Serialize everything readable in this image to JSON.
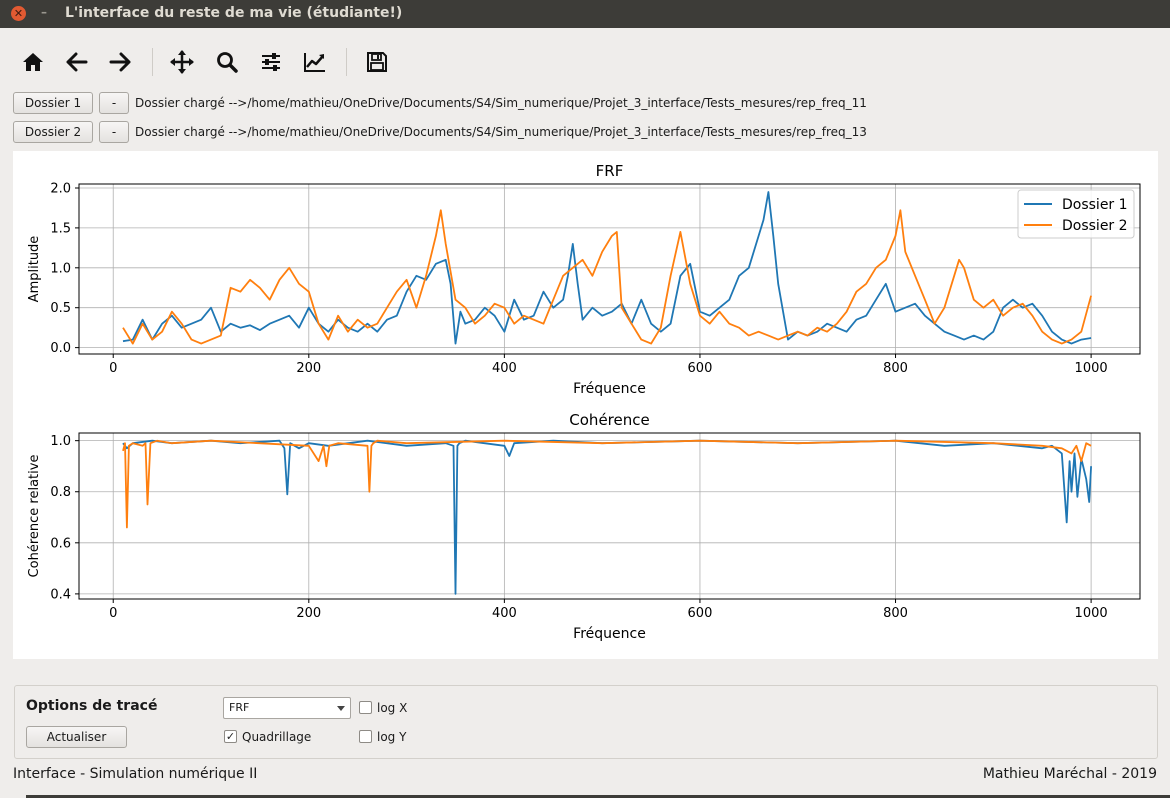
{
  "window": {
    "title": "L'interface du reste de ma vie (étudiante!)",
    "close_glyph": "✕",
    "minimize_glyph": "–"
  },
  "toolbar": {
    "icons": [
      "home-icon",
      "back-arrow-icon",
      "forward-arrow-icon",
      "pan-move-icon",
      "zoom-icon",
      "subplots-config-icon",
      "edit-axes-icon",
      "save-icon"
    ]
  },
  "folders": [
    {
      "button": "Dossier 1",
      "remove": "-",
      "path": "Dossier chargé -->/home/mathieu/OneDrive/Documents/S4/Sim_numerique/Projet_3_interface/Tests_mesures/rep_freq_11"
    },
    {
      "button": "Dossier 2",
      "remove": "-",
      "path": "Dossier chargé -->/home/mathieu/OneDrive/Documents/S4/Sim_numerique/Projet_3_interface/Tests_mesures/rep_freq_13"
    }
  ],
  "chart_data": [
    {
      "type": "line",
      "title": "FRF",
      "xlabel": "Fréquence",
      "ylabel": "Amplitude",
      "xlim": [
        -35,
        1050
      ],
      "ylim": [
        -0.08,
        2.05
      ],
      "xticks": [
        0,
        200,
        400,
        600,
        800,
        1000
      ],
      "yticks": [
        0.0,
        0.5,
        1.0,
        1.5,
        2.0
      ],
      "ytick_labels": [
        "0.0",
        "0.5",
        "1.0",
        "1.5",
        "2.0"
      ],
      "grid": true,
      "legend": "top-right",
      "series": [
        {
          "name": "Dossier 1",
          "color": "#1f77b4",
          "x": [
            10,
            20,
            30,
            40,
            50,
            60,
            70,
            80,
            90,
            100,
            110,
            120,
            130,
            140,
            150,
            160,
            170,
            180,
            190,
            200,
            210,
            220,
            230,
            240,
            250,
            260,
            270,
            280,
            290,
            300,
            310,
            320,
            330,
            340,
            345,
            350,
            355,
            360,
            370,
            380,
            390,
            400,
            410,
            420,
            430,
            440,
            450,
            460,
            465,
            470,
            475,
            480,
            490,
            500,
            510,
            520,
            530,
            540,
            550,
            560,
            570,
            580,
            590,
            600,
            610,
            620,
            630,
            640,
            650,
            660,
            665,
            670,
            675,
            680,
            690,
            700,
            710,
            720,
            730,
            740,
            750,
            760,
            770,
            780,
            790,
            800,
            810,
            820,
            830,
            840,
            850,
            860,
            870,
            880,
            890,
            900,
            910,
            920,
            930,
            940,
            950,
            960,
            970,
            980,
            990,
            1000
          ],
          "y": [
            0.08,
            0.1,
            0.35,
            0.1,
            0.3,
            0.4,
            0.25,
            0.3,
            0.35,
            0.5,
            0.2,
            0.3,
            0.25,
            0.28,
            0.22,
            0.3,
            0.35,
            0.4,
            0.25,
            0.5,
            0.3,
            0.2,
            0.35,
            0.25,
            0.2,
            0.3,
            0.2,
            0.35,
            0.4,
            0.7,
            0.9,
            0.85,
            1.05,
            1.1,
            0.8,
            0.05,
            0.45,
            0.3,
            0.35,
            0.5,
            0.4,
            0.2,
            0.6,
            0.35,
            0.4,
            0.7,
            0.5,
            0.6,
            0.9,
            1.3,
            0.8,
            0.35,
            0.5,
            0.4,
            0.45,
            0.55,
            0.3,
            0.6,
            0.3,
            0.2,
            0.3,
            0.9,
            1.05,
            0.45,
            0.4,
            0.5,
            0.6,
            0.9,
            1.0,
            1.4,
            1.6,
            1.95,
            1.4,
            0.8,
            0.1,
            0.2,
            0.15,
            0.2,
            0.3,
            0.25,
            0.2,
            0.35,
            0.4,
            0.6,
            0.8,
            0.45,
            0.5,
            0.55,
            0.4,
            0.3,
            0.2,
            0.15,
            0.1,
            0.15,
            0.1,
            0.2,
            0.5,
            0.6,
            0.5,
            0.55,
            0.4,
            0.2,
            0.1,
            0.05,
            0.1,
            0.12
          ]
        },
        {
          "name": "Dossier 2",
          "color": "#ff7f0e",
          "x": [
            10,
            20,
            30,
            40,
            50,
            60,
            70,
            80,
            90,
            100,
            110,
            120,
            130,
            140,
            150,
            160,
            170,
            180,
            190,
            200,
            210,
            220,
            230,
            240,
            250,
            260,
            270,
            280,
            290,
            300,
            310,
            320,
            330,
            335,
            340,
            350,
            360,
            370,
            380,
            390,
            400,
            410,
            420,
            430,
            440,
            450,
            460,
            470,
            480,
            490,
            500,
            510,
            515,
            520,
            530,
            540,
            550,
            560,
            570,
            580,
            590,
            600,
            610,
            620,
            630,
            640,
            650,
            660,
            670,
            680,
            690,
            700,
            710,
            720,
            730,
            740,
            750,
            760,
            770,
            780,
            790,
            800,
            805,
            810,
            820,
            830,
            840,
            850,
            860,
            865,
            870,
            880,
            890,
            900,
            910,
            920,
            930,
            940,
            950,
            960,
            970,
            980,
            990,
            1000
          ],
          "y": [
            0.25,
            0.05,
            0.3,
            0.1,
            0.2,
            0.45,
            0.3,
            0.1,
            0.05,
            0.1,
            0.15,
            0.75,
            0.7,
            0.85,
            0.75,
            0.6,
            0.85,
            1.0,
            0.8,
            0.7,
            0.3,
            0.1,
            0.4,
            0.2,
            0.35,
            0.25,
            0.3,
            0.5,
            0.7,
            0.85,
            0.5,
            0.9,
            1.4,
            1.72,
            1.3,
            0.6,
            0.5,
            0.3,
            0.4,
            0.55,
            0.5,
            0.3,
            0.4,
            0.35,
            0.3,
            0.6,
            0.9,
            1.0,
            1.1,
            0.9,
            1.2,
            1.4,
            1.45,
            0.5,
            0.3,
            0.1,
            0.05,
            0.25,
            0.9,
            1.45,
            0.8,
            0.4,
            0.3,
            0.45,
            0.3,
            0.25,
            0.15,
            0.2,
            0.15,
            0.1,
            0.15,
            0.2,
            0.15,
            0.25,
            0.2,
            0.3,
            0.45,
            0.7,
            0.8,
            1.0,
            1.1,
            1.4,
            1.72,
            1.2,
            0.9,
            0.6,
            0.3,
            0.5,
            0.9,
            1.1,
            1.0,
            0.6,
            0.5,
            0.6,
            0.4,
            0.5,
            0.55,
            0.4,
            0.2,
            0.1,
            0.05,
            0.1,
            0.2,
            0.65
          ]
        }
      ]
    },
    {
      "type": "line",
      "title": "Cohérence",
      "xlabel": "Fréquence",
      "ylabel": "Cohérence relative",
      "xlim": [
        -35,
        1050
      ],
      "ylim": [
        0.38,
        1.03
      ],
      "xticks": [
        0,
        200,
        400,
        600,
        800,
        1000
      ],
      "yticks": [
        0.4,
        0.6,
        0.8,
        1.0
      ],
      "ytick_labels": [
        "0.4",
        "0.6",
        "0.8",
        "1.0"
      ],
      "grid": true,
      "series": [
        {
          "name": "Dossier 1",
          "color": "#1f77b4",
          "x": [
            10,
            14,
            20,
            40,
            60,
            100,
            130,
            170,
            175,
            178,
            181,
            190,
            200,
            220,
            260,
            300,
            340,
            348,
            350,
            352,
            354,
            360,
            400,
            405,
            410,
            450,
            500,
            600,
            700,
            800,
            850,
            900,
            950,
            960,
            970,
            975,
            978,
            980,
            983,
            986,
            990,
            995,
            998,
            1000
          ],
          "y": [
            0.99,
            0.97,
            0.99,
            1.0,
            0.99,
            1.0,
            0.99,
            1.0,
            0.97,
            0.79,
            0.99,
            0.97,
            0.99,
            0.98,
            1.0,
            0.98,
            0.99,
            0.98,
            0.4,
            0.98,
            0.99,
            1.0,
            0.98,
            0.94,
            0.99,
            1.0,
            0.99,
            1.0,
            0.99,
            1.0,
            0.98,
            0.99,
            0.97,
            0.98,
            0.95,
            0.68,
            0.92,
            0.8,
            0.95,
            0.78,
            0.93,
            0.85,
            0.76,
            0.9
          ]
        },
        {
          "name": "Dossier 2",
          "color": "#ff7f0e",
          "x": [
            10,
            12,
            14,
            16,
            20,
            30,
            33,
            35,
            38,
            45,
            60,
            100,
            200,
            210,
            215,
            218,
            221,
            230,
            260,
            262,
            264,
            266,
            270,
            300,
            400,
            500,
            600,
            700,
            800,
            900,
            950,
            970,
            980,
            985,
            990,
            995,
            1000
          ],
          "y": [
            0.96,
            0.99,
            0.66,
            0.98,
            0.99,
            0.98,
            0.99,
            0.75,
            0.99,
            1.0,
            0.99,
            1.0,
            0.98,
            0.92,
            0.98,
            0.9,
            0.98,
            0.99,
            0.98,
            0.8,
            0.98,
            0.99,
            1.0,
            0.99,
            1.0,
            0.99,
            1.0,
            0.99,
            1.0,
            0.99,
            0.98,
            0.97,
            0.95,
            0.98,
            0.92,
            0.99,
            0.98
          ]
        }
      ]
    }
  ],
  "options": {
    "title": "Options de tracé",
    "update_button": "Actualiser",
    "plot_type": "FRF",
    "grid_label": "Quadrillage",
    "grid_checked": true,
    "check_mark": "✓",
    "logx_label": "log X",
    "logx_checked": false,
    "logy_label": "log Y",
    "logy_checked": false
  },
  "status": {
    "left": "Interface - Simulation numérique II",
    "right": "Mathieu Maréchal - 2019"
  }
}
